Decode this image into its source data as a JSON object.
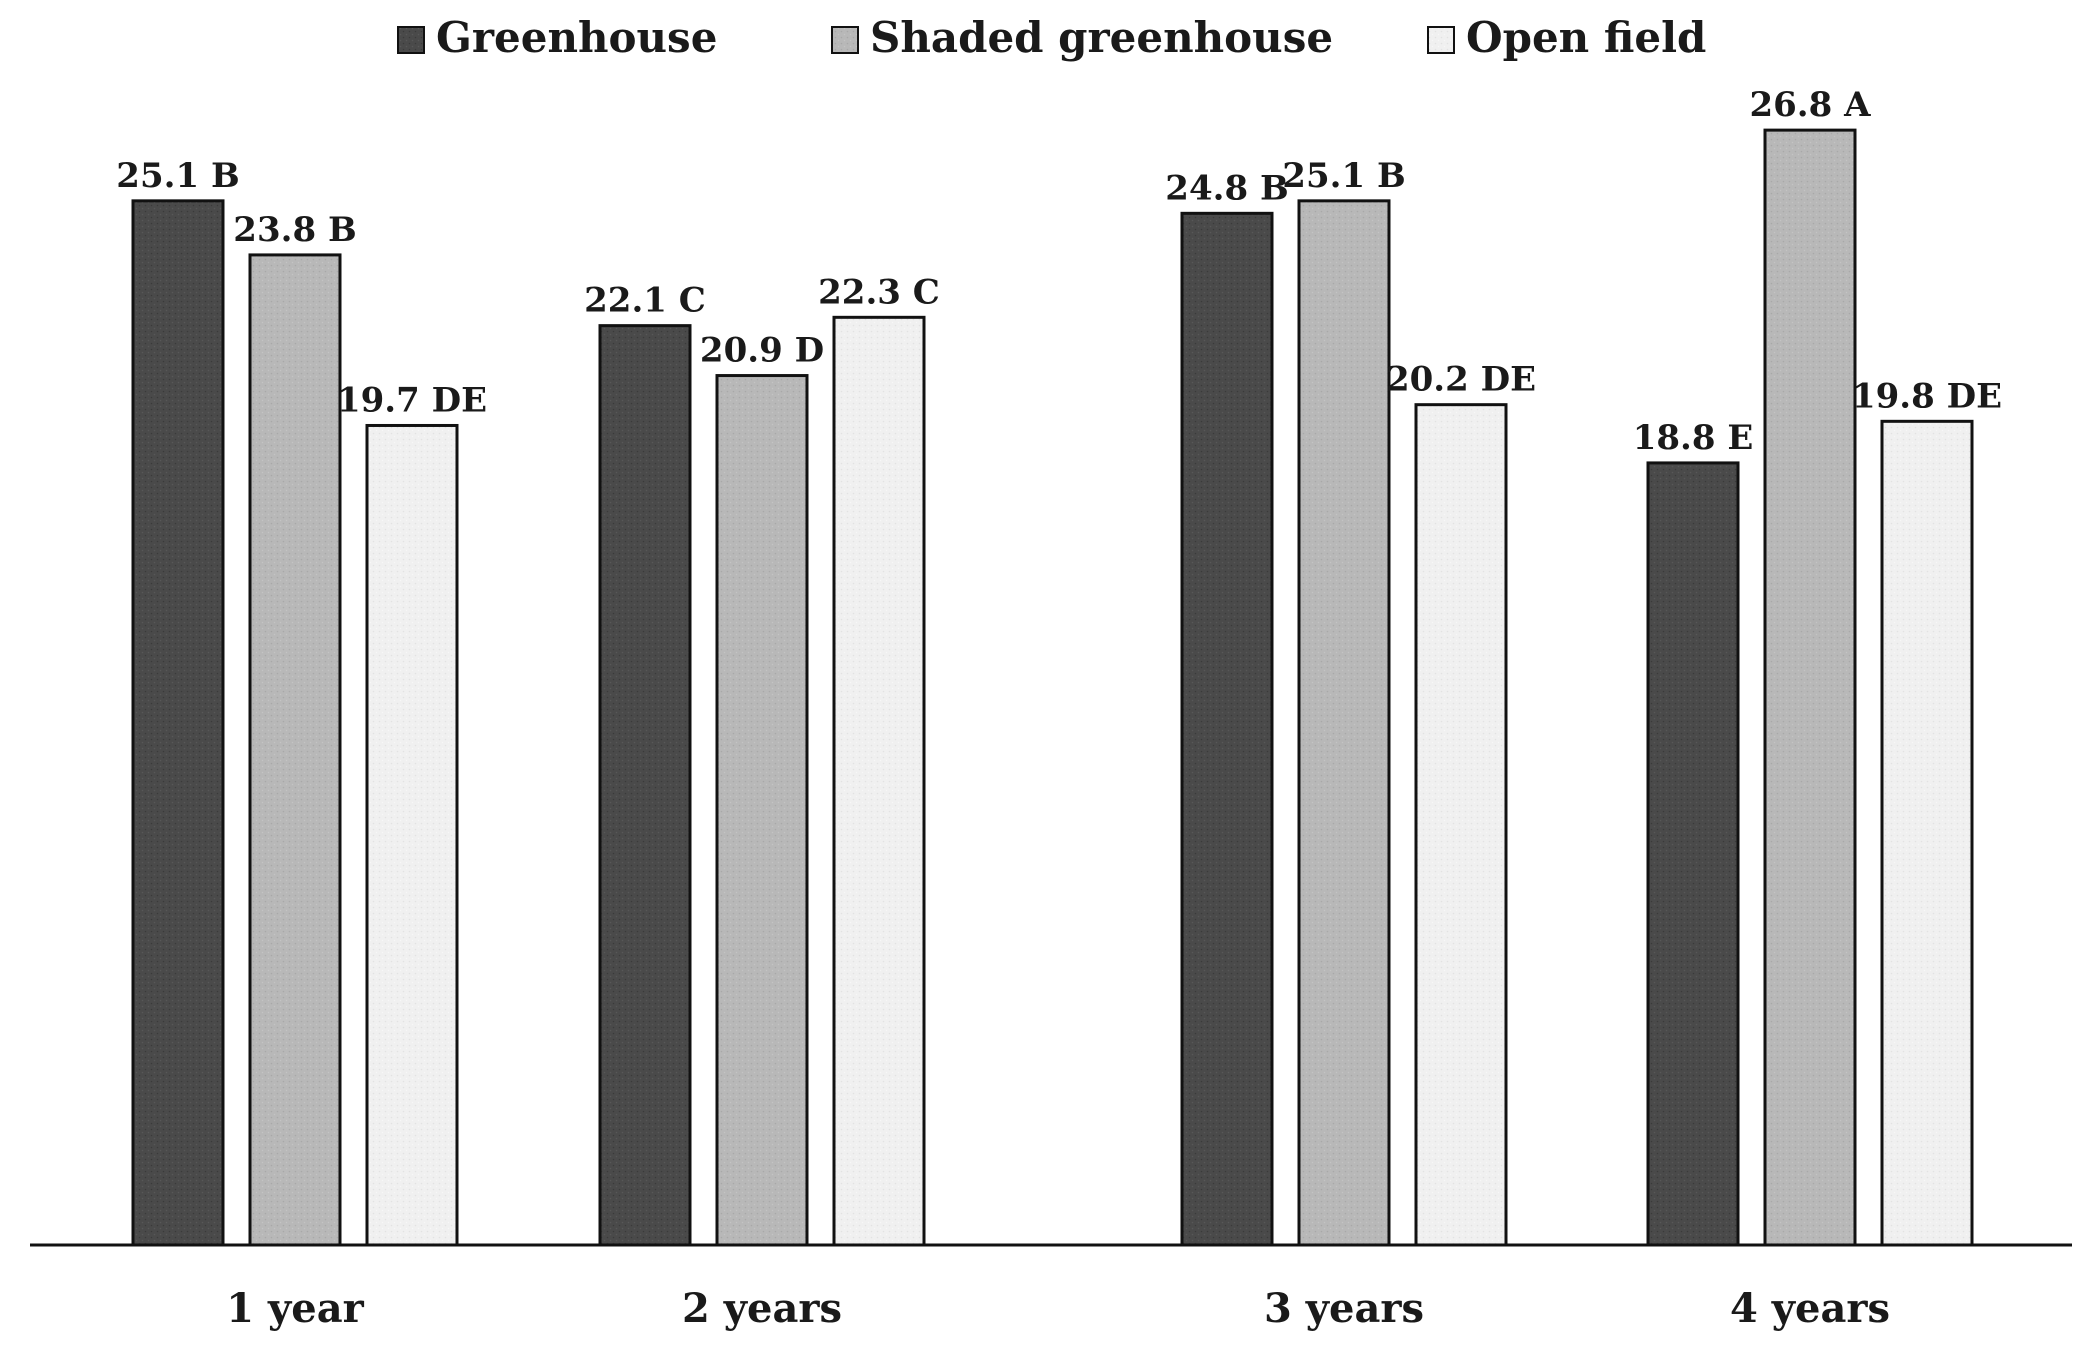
{
  "chart_data": {
    "type": "bar",
    "title": "",
    "xlabel": "",
    "ylabel": "",
    "ylim": [
      0,
      28
    ],
    "grid": false,
    "legend_position": "top",
    "categories": [
      "1 year",
      "2 years",
      "3 years",
      "4 years"
    ],
    "series": [
      {
        "name": "Greenhouse",
        "color": "#4a4a4a",
        "values": [
          25.1,
          22.1,
          24.8,
          18.8
        ],
        "labels": [
          "25.1 B",
          "22.1 C",
          "24.8 B",
          "18.8 E"
        ]
      },
      {
        "name": "Shaded greenhouse",
        "color": "#b8b8b8",
        "values": [
          23.8,
          20.9,
          25.1,
          26.8
        ],
        "labels": [
          "23.8 B",
          "20.9 D",
          "25.1 B",
          "26.8 A"
        ]
      },
      {
        "name": "Open field",
        "color": "#f0f0f0",
        "values": [
          19.7,
          22.3,
          20.2,
          19.8
        ],
        "labels": [
          "19.7 DE",
          "22.3 C",
          "20.2 DE",
          "19.8 DE"
        ]
      }
    ]
  }
}
